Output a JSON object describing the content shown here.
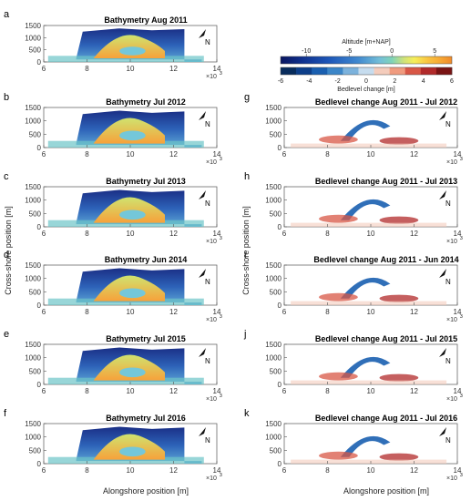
{
  "chart_data": [
    {
      "type": "heatmap",
      "panel": "a",
      "title": "Bathymetry Aug 2011",
      "variable": "altitude",
      "unit": "m+NAP",
      "xlim": [
        6,
        14
      ],
      "x_scale": "×10^3",
      "x_ticks": [
        "6",
        "8",
        "10",
        "12",
        "14"
      ],
      "ylim": [
        0,
        1500
      ],
      "y_ticks": [
        "0",
        "500",
        "1000",
        "1500"
      ]
    },
    {
      "type": "heatmap",
      "panel": "b",
      "title": "Bathymetry Jul 2012",
      "variable": "altitude",
      "unit": "m+NAP",
      "xlim": [
        6,
        14
      ],
      "x_scale": "×10^3",
      "x_ticks": [
        "6",
        "8",
        "10",
        "12",
        "14"
      ],
      "ylim": [
        0,
        1500
      ],
      "y_ticks": [
        "0",
        "500",
        "1000",
        "1500"
      ]
    },
    {
      "type": "heatmap",
      "panel": "c",
      "title": "Bathymetry Jul 2013",
      "variable": "altitude",
      "unit": "m+NAP",
      "xlim": [
        6,
        14
      ],
      "x_scale": "×10^3",
      "x_ticks": [
        "6",
        "8",
        "10",
        "12",
        "14"
      ],
      "ylim": [
        0,
        1500
      ],
      "y_ticks": [
        "0",
        "500",
        "1000",
        "1500"
      ]
    },
    {
      "type": "heatmap",
      "panel": "d",
      "title": "Bathymetry Jun 2014",
      "variable": "altitude",
      "unit": "m+NAP",
      "xlim": [
        6,
        14
      ],
      "x_scale": "×10^3",
      "x_ticks": [
        "6",
        "8",
        "10",
        "12",
        "14"
      ],
      "ylim": [
        0,
        1500
      ],
      "y_ticks": [
        "0",
        "500",
        "1000",
        "1500"
      ]
    },
    {
      "type": "heatmap",
      "panel": "e",
      "title": "Bathymetry Jul 2015",
      "variable": "altitude",
      "unit": "m+NAP",
      "xlim": [
        6,
        14
      ],
      "x_scale": "×10^3",
      "x_ticks": [
        "6",
        "8",
        "10",
        "12",
        "14"
      ],
      "ylim": [
        0,
        1500
      ],
      "y_ticks": [
        "0",
        "500",
        "1000",
        "1500"
      ]
    },
    {
      "type": "heatmap",
      "panel": "f",
      "title": "Bathymetry Jul 2016",
      "variable": "altitude",
      "unit": "m+NAP",
      "xlim": [
        6,
        14
      ],
      "x_scale": "×10^3",
      "x_ticks": [
        "6",
        "8",
        "10",
        "12",
        "14"
      ],
      "ylim": [
        0,
        1500
      ],
      "y_ticks": [
        "0",
        "500",
        "1000",
        "1500"
      ],
      "xlabel": "Alongshore position [m]"
    },
    {
      "type": "heatmap",
      "panel": "g",
      "title": "Bedlevel change Aug 2011 - Jul 2012",
      "variable": "bedlevel change",
      "unit": "m",
      "xlim": [
        6,
        14
      ],
      "x_scale": "×10^3",
      "x_ticks": [
        "6",
        "8",
        "10",
        "12",
        "14"
      ],
      "ylim": [
        0,
        1500
      ],
      "y_ticks": [
        "0",
        "500",
        "1000",
        "1500"
      ]
    },
    {
      "type": "heatmap",
      "panel": "h",
      "title": "Bedlevel change Aug 2011 - Jul 2013",
      "variable": "bedlevel change",
      "unit": "m",
      "xlim": [
        6,
        14
      ],
      "x_scale": "×10^3",
      "x_ticks": [
        "6",
        "8",
        "10",
        "12",
        "14"
      ],
      "ylim": [
        0,
        1500
      ],
      "y_ticks": [
        "0",
        "500",
        "1000",
        "1500"
      ]
    },
    {
      "type": "heatmap",
      "panel": "i",
      "title": "Bedlevel change Aug 2011 - Jun 2014",
      "variable": "bedlevel change",
      "unit": "m",
      "xlim": [
        6,
        14
      ],
      "x_scale": "×10^3",
      "x_ticks": [
        "6",
        "8",
        "10",
        "12",
        "14"
      ],
      "ylim": [
        0,
        1500
      ],
      "y_ticks": [
        "0",
        "500",
        "1000",
        "1500"
      ]
    },
    {
      "type": "heatmap",
      "panel": "j",
      "title": "Bedlevel change Aug 2011 - Jul 2015",
      "variable": "bedlevel change",
      "unit": "m",
      "xlim": [
        6,
        14
      ],
      "x_scale": "×10^3",
      "x_ticks": [
        "6",
        "8",
        "10",
        "12",
        "14"
      ],
      "ylim": [
        0,
        1500
      ],
      "y_ticks": [
        "0",
        "500",
        "1000",
        "1500"
      ]
    },
    {
      "type": "heatmap",
      "panel": "k",
      "title": "Bedlevel change Aug 2011 - Jul 2016",
      "variable": "bedlevel change",
      "unit": "m",
      "xlim": [
        6,
        14
      ],
      "x_scale": "×10^3",
      "x_ticks": [
        "6",
        "8",
        "10",
        "12",
        "14"
      ],
      "ylim": [
        0,
        1500
      ],
      "y_ticks": [
        "0",
        "500",
        "1000",
        "1500"
      ],
      "xlabel": "Alongshore position [m]"
    }
  ],
  "labels": {
    "ylabel": "Cross-shore position [m]",
    "xlabel": "Alongshore position [m]",
    "x_scale": "×10",
    "x_scale_exp": "3",
    "north": "N"
  },
  "colorbars": {
    "altitude": {
      "label": "Altitude [m+NAP]",
      "ticks": [
        "-10",
        "-5",
        "0",
        "5"
      ],
      "tick_values": [
        -10,
        -5,
        0,
        5
      ],
      "range": [
        -13,
        7
      ]
    },
    "change": {
      "label": "Bedlevel change [m]",
      "ticks": [
        "-6",
        "-4",
        "-2",
        "0",
        "2",
        "4",
        "6"
      ],
      "tick_values": [
        -6,
        -4,
        -2,
        0,
        2,
        4,
        6
      ],
      "range": [
        -6,
        6
      ]
    }
  },
  "colors": {
    "altitude_scale": [
      "#0a1660",
      "#0e2f8c",
      "#1d56b8",
      "#3f88cf",
      "#74bfd8",
      "#7fd3b8",
      "#cfe27a",
      "#f6ee5a",
      "#f9c441",
      "#f7a934",
      "#f08a2a"
    ],
    "change_scale": [
      "#082c5c",
      "#0d3f8a",
      "#1a5fb0",
      "#3c86c8",
      "#7cb2dc",
      "#c6dcee",
      "#f4ccbc",
      "#f09b7f",
      "#d85746",
      "#b12a2a",
      "#7a1414"
    ]
  }
}
